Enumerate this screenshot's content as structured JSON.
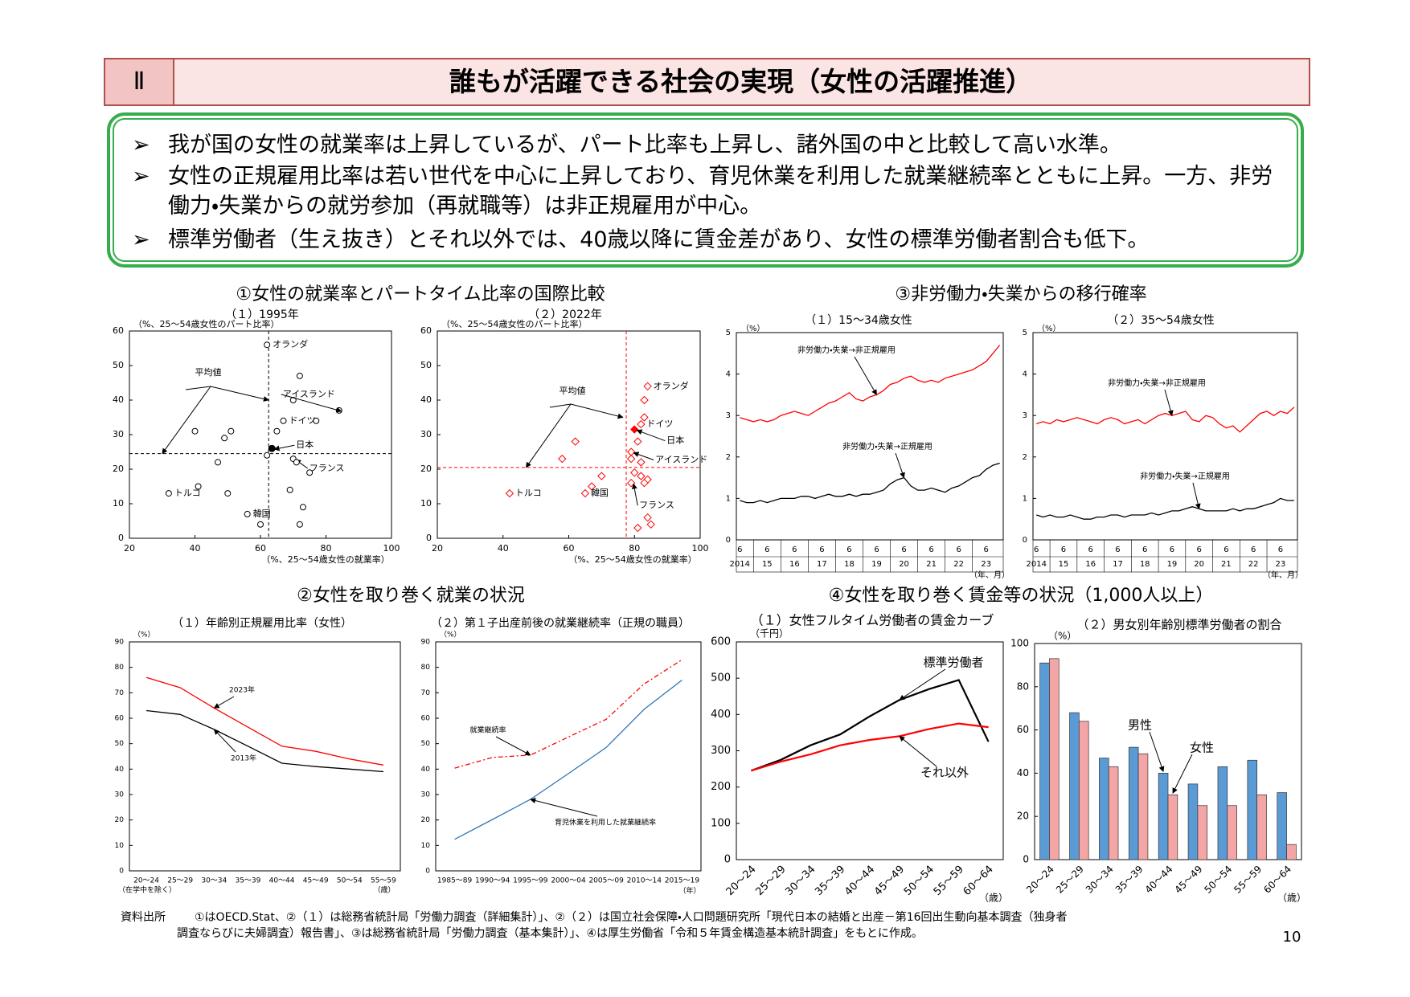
{
  "header": {
    "number": "Ⅱ",
    "title": "誰もが活躍できる社会の実現（女性の活躍推進）"
  },
  "bullets": [
    "我が国の女性の就業率は上昇しているが、パート比率も上昇し、諸外国の中と比較して高い水準。",
    "女性の正規雇用比率は若い世代を中心に上昇しており、育児休業を利用した就業継続率とともに上昇。一方、非労働力・失業からの就労参加（再就職等）は非正規雇用が中心。",
    "標準労働者（生え抜き）とそれ以外では、40歳以降に賃金差があり、女性の標準労働者割合も低下。"
  ],
  "sections": [
    "①女性の就業率とパートタイム比率の国際比較",
    "③非労働力・失業からの移行確率",
    "②女性を取り巻く就業の状況",
    "④女性を取り巻く賃金等の状況（1,000人以上）"
  ],
  "chart_data": [
    {
      "type": "scatter",
      "subtitle": "（１）1995年",
      "y_label": "（%、25～54歳女性のパート比率）",
      "x_label": "（%、25～54歳女性の就業率）",
      "x": [
        62,
        72,
        70,
        84,
        77,
        67,
        65,
        40,
        51,
        49,
        63.5,
        62,
        70,
        71,
        75,
        47,
        32,
        41,
        50,
        69,
        73,
        56,
        60,
        72
      ],
      "y": [
        56,
        47,
        40,
        37,
        34,
        34,
        31,
        31,
        31,
        29,
        26,
        24,
        23,
        22,
        19,
        22,
        13,
        15,
        13,
        14,
        9,
        7,
        4,
        4
      ],
      "names": [
        "オランダ",
        null,
        null,
        "アイスランド",
        null,
        "ドイツ",
        null,
        null,
        null,
        null,
        "日本",
        null,
        "フランス",
        null,
        null,
        null,
        "トルコ",
        null,
        null,
        null,
        null,
        "韓国",
        null,
        null
      ],
      "highlight": "日本",
      "marker": "circle",
      "color": "#000000",
      "average": {
        "label": "平均値",
        "x": 62.5,
        "y": 24.5
      },
      "average_color": "#000000",
      "xlim": [
        20,
        100
      ],
      "xticks": [
        20,
        40,
        60,
        80,
        100
      ],
      "ylim": [
        0,
        60
      ],
      "yticks": [
        0,
        10,
        20,
        30,
        40,
        50,
        60
      ]
    },
    {
      "type": "scatter",
      "subtitle": "（２）2022年",
      "y_label": "（%、25～54歳女性のパート比率）",
      "x_label": "（%、25～54歳女性の就業率）",
      "x": [
        84,
        83,
        83,
        82,
        80,
        81,
        62,
        58,
        79,
        79,
        82,
        80,
        82,
        84,
        83,
        79,
        70,
        67,
        65,
        42,
        84,
        85,
        81
      ],
      "y": [
        44,
        40,
        35,
        33,
        31.5,
        28,
        28,
        23,
        25,
        23,
        22,
        19,
        18,
        17,
        16,
        16,
        18,
        15,
        13,
        13,
        6,
        4,
        3
      ],
      "names": [
        "オランダ",
        null,
        null,
        "ドイツ",
        "日本",
        null,
        null,
        null,
        "アイスランド",
        null,
        null,
        null,
        null,
        null,
        null,
        "フランス",
        null,
        null,
        "韓国",
        "トルコ",
        null,
        null,
        null
      ],
      "highlight": "日本",
      "marker": "diamond",
      "color": "#ff0000",
      "average": {
        "label": "平均値",
        "x": 77.5,
        "y": 20.5
      },
      "average_color": "#ff0000",
      "xlim": [
        20,
        100
      ],
      "xticks": [
        20,
        40,
        60,
        80,
        100
      ],
      "ylim": [
        0,
        60
      ],
      "yticks": [
        0,
        10,
        20,
        30,
        40,
        50,
        60
      ]
    },
    {
      "type": "line",
      "subtitle": "（１）15～34歳女性",
      "y_label": "（%）",
      "x_unit": "（年、月）",
      "categories": [
        "6",
        null,
        null,
        null,
        "6",
        null,
        null,
        null,
        "6",
        null,
        null,
        null,
        "6",
        null,
        null,
        null,
        "6",
        null,
        null,
        null,
        "6",
        null,
        null,
        null,
        "6",
        null,
        null,
        null,
        "6",
        null,
        null,
        null,
        "6",
        null,
        null,
        null,
        "6",
        null,
        null
      ],
      "years": [
        "2014",
        null,
        null,
        null,
        "15",
        null,
        null,
        null,
        "16",
        null,
        null,
        null,
        "17",
        null,
        null,
        null,
        "18",
        null,
        null,
        null,
        "19",
        null,
        null,
        null,
        "20",
        null,
        null,
        null,
        "21",
        null,
        null,
        null,
        "22",
        null,
        null,
        null,
        "23",
        null,
        null
      ],
      "ylim": [
        0,
        5
      ],
      "yticks": [
        0,
        1,
        2,
        3,
        4,
        5
      ],
      "series": [
        {
          "name": "非労働力・失業→非正規雇用",
          "color": "#ff0000",
          "values": [
            2.95,
            2.9,
            2.85,
            2.9,
            2.85,
            2.9,
            3.0,
            3.05,
            3.1,
            3.05,
            3.0,
            3.1,
            3.2,
            3.3,
            3.35,
            3.45,
            3.55,
            3.4,
            3.35,
            3.45,
            3.5,
            3.6,
            3.75,
            3.8,
            3.9,
            3.95,
            3.85,
            3.8,
            3.85,
            3.8,
            3.9,
            3.95,
            4.0,
            4.05,
            4.1,
            4.2,
            4.3,
            4.5,
            4.7
          ]
        },
        {
          "name": "非労働力・失業→正規雇用",
          "color": "#000000",
          "values": [
            0.95,
            0.9,
            0.9,
            0.95,
            0.9,
            0.95,
            1.0,
            1.0,
            1.0,
            1.05,
            1.05,
            1.0,
            1.05,
            1.1,
            1.05,
            1.05,
            1.1,
            1.05,
            1.1,
            1.1,
            1.15,
            1.2,
            1.35,
            1.45,
            1.5,
            1.3,
            1.2,
            1.2,
            1.25,
            1.2,
            1.15,
            1.25,
            1.3,
            1.4,
            1.5,
            1.55,
            1.7,
            1.8,
            1.85
          ]
        }
      ]
    },
    {
      "type": "line",
      "subtitle": "（２）35～54歳女性",
      "y_label": "（%）",
      "x_unit": "（年、月）",
      "categories": [
        "6",
        null,
        null,
        null,
        "6",
        null,
        null,
        null,
        "6",
        null,
        null,
        null,
        "6",
        null,
        null,
        null,
        "6",
        null,
        null,
        null,
        "6",
        null,
        null,
        null,
        "6",
        null,
        null,
        null,
        "6",
        null,
        null,
        null,
        "6",
        null,
        null,
        null,
        "6",
        null,
        null
      ],
      "years": [
        "2014",
        null,
        null,
        null,
        "15",
        null,
        null,
        null,
        "16",
        null,
        null,
        null,
        "17",
        null,
        null,
        null,
        "18",
        null,
        null,
        null,
        "19",
        null,
        null,
        null,
        "20",
        null,
        null,
        null,
        "21",
        null,
        null,
        null,
        "22",
        null,
        null,
        null,
        "23",
        null,
        null
      ],
      "ylim": [
        0,
        5
      ],
      "yticks": [
        0,
        1,
        2,
        3,
        4,
        5
      ],
      "series": [
        {
          "name": "非労働力・失業→非正規雇用",
          "color": "#ff0000",
          "values": [
            2.8,
            2.85,
            2.8,
            2.9,
            2.85,
            2.9,
            2.95,
            2.9,
            2.85,
            2.8,
            2.9,
            2.95,
            2.9,
            2.8,
            2.85,
            2.9,
            2.8,
            2.9,
            3.0,
            3.05,
            3.0,
            3.05,
            3.1,
            2.9,
            2.85,
            3.0,
            2.95,
            2.8,
            2.7,
            2.75,
            2.6,
            2.75,
            2.9,
            3.05,
            3.1,
            3.0,
            3.1,
            3.05,
            3.2
          ]
        },
        {
          "name": "非労働力・失業→正規雇用",
          "color": "#000000",
          "values": [
            0.6,
            0.55,
            0.6,
            0.55,
            0.55,
            0.6,
            0.55,
            0.5,
            0.5,
            0.55,
            0.55,
            0.6,
            0.6,
            0.55,
            0.6,
            0.6,
            0.6,
            0.65,
            0.6,
            0.65,
            0.7,
            0.7,
            0.75,
            0.8,
            0.75,
            0.7,
            0.7,
            0.7,
            0.7,
            0.75,
            0.7,
            0.75,
            0.75,
            0.8,
            0.85,
            0.9,
            1.0,
            0.95,
            0.95
          ]
        }
      ]
    },
    {
      "type": "line",
      "subtitle": "（１）年齢別正規雇用比率（女性）",
      "y_label": "（%）",
      "x_unit": "（歳）",
      "category_note": "（在学中を除く）",
      "categories": [
        "20～24",
        "25～29",
        "30～34",
        "35～39",
        "40～44",
        "45～49",
        "50～54",
        "55～59"
      ],
      "ylim": [
        0,
        90
      ],
      "yticks": [
        0,
        10,
        20,
        30,
        40,
        50,
        60,
        70,
        80,
        90
      ],
      "series": [
        {
          "name": "2023年",
          "color": "#ff0000",
          "values": [
            76,
            72,
            64,
            56.5,
            49,
            47,
            44,
            41.6
          ]
        },
        {
          "name": "2013年",
          "color": "#000000",
          "values": [
            63,
            61.5,
            55.6,
            49,
            42.3,
            41,
            40,
            39
          ]
        }
      ]
    },
    {
      "type": "line",
      "subtitle": "（２）第１子出産前後の就業継続率（正規の職員）",
      "y_label": "（%）",
      "x_unit": "（年）",
      "categories": [
        "1985～89",
        "1990～94",
        "1995～99",
        "2000～04",
        "2005～09",
        "2010～14",
        "2015～19"
      ],
      "ylim": [
        0,
        90
      ],
      "yticks": [
        0,
        10,
        20,
        30,
        40,
        50,
        60,
        70,
        80,
        90
      ],
      "series": [
        {
          "name": "就業継続率",
          "color": "#ff0000",
          "dashed": true,
          "values": [
            40.4,
            44.6,
            45.5,
            52.6,
            59.6,
            73.5,
            83.0
          ]
        },
        {
          "name": "育児休業を利用した就業継続率",
          "color": "#2e75b6",
          "dashed": false,
          "values": [
            12.4,
            20.2,
            28.1,
            38.2,
            48.5,
            63.5,
            75.0
          ]
        }
      ]
    },
    {
      "type": "line",
      "subtitle": "（１）女性フルタイム労働者の賃金カーブ",
      "y_label": "（千円）",
      "x_unit": "（歳）",
      "categories": [
        "20～24",
        "25～29",
        "30～34",
        "35～39",
        "40～44",
        "45～49",
        "50～54",
        "55～59",
        "60～64"
      ],
      "ylim": [
        0,
        600
      ],
      "yticks": [
        0,
        100,
        200,
        300,
        400,
        500,
        600
      ],
      "series": [
        {
          "name": "標準労働者",
          "color": "#000000",
          "values": [
            245,
            275,
            315,
            345,
            395,
            440,
            470,
            495,
            325
          ]
        },
        {
          "name": "それ以外",
          "color": "#ff0000",
          "values": [
            245,
            270,
            290,
            315,
            330,
            340,
            360,
            375,
            365
          ]
        }
      ]
    },
    {
      "type": "bar",
      "subtitle": "（２）男女別年齢別標準労働者の割合",
      "y_label": "（%）",
      "x_unit": "（歳）",
      "categories": [
        "20～24",
        "25～29",
        "30～34",
        "35～39",
        "40～44",
        "45～49",
        "50～54",
        "55～59",
        "60～64"
      ],
      "ylim": [
        0,
        100
      ],
      "yticks": [
        0,
        20,
        40,
        60,
        80,
        100
      ],
      "series": [
        {
          "name": "男性",
          "color": "#5b9bd5",
          "values": [
            91,
            68,
            47,
            52,
            40,
            35,
            43,
            46,
            31
          ]
        },
        {
          "name": "女性",
          "color": "#f4a6a6",
          "values": [
            93,
            64,
            43,
            49,
            30,
            25,
            25,
            30,
            7
          ]
        }
      ]
    }
  ],
  "source": {
    "label": "資料出所",
    "lines": [
      "①はOECD.Stat、②（１）は総務省統計局「労働力調査（詳細集計）」、②（２）は国立社会保障・人口問題研究所「現代日本の結婚と出産－第16回出生動向基本調査（独身者",
      "調査ならびに夫婦調査）報告書」、③は総務省統計局「労働力調査（基本集計）」、④は厚生労働省「令和５年賃金構造基本統計調査」をもとに作成。"
    ]
  },
  "page": "10"
}
